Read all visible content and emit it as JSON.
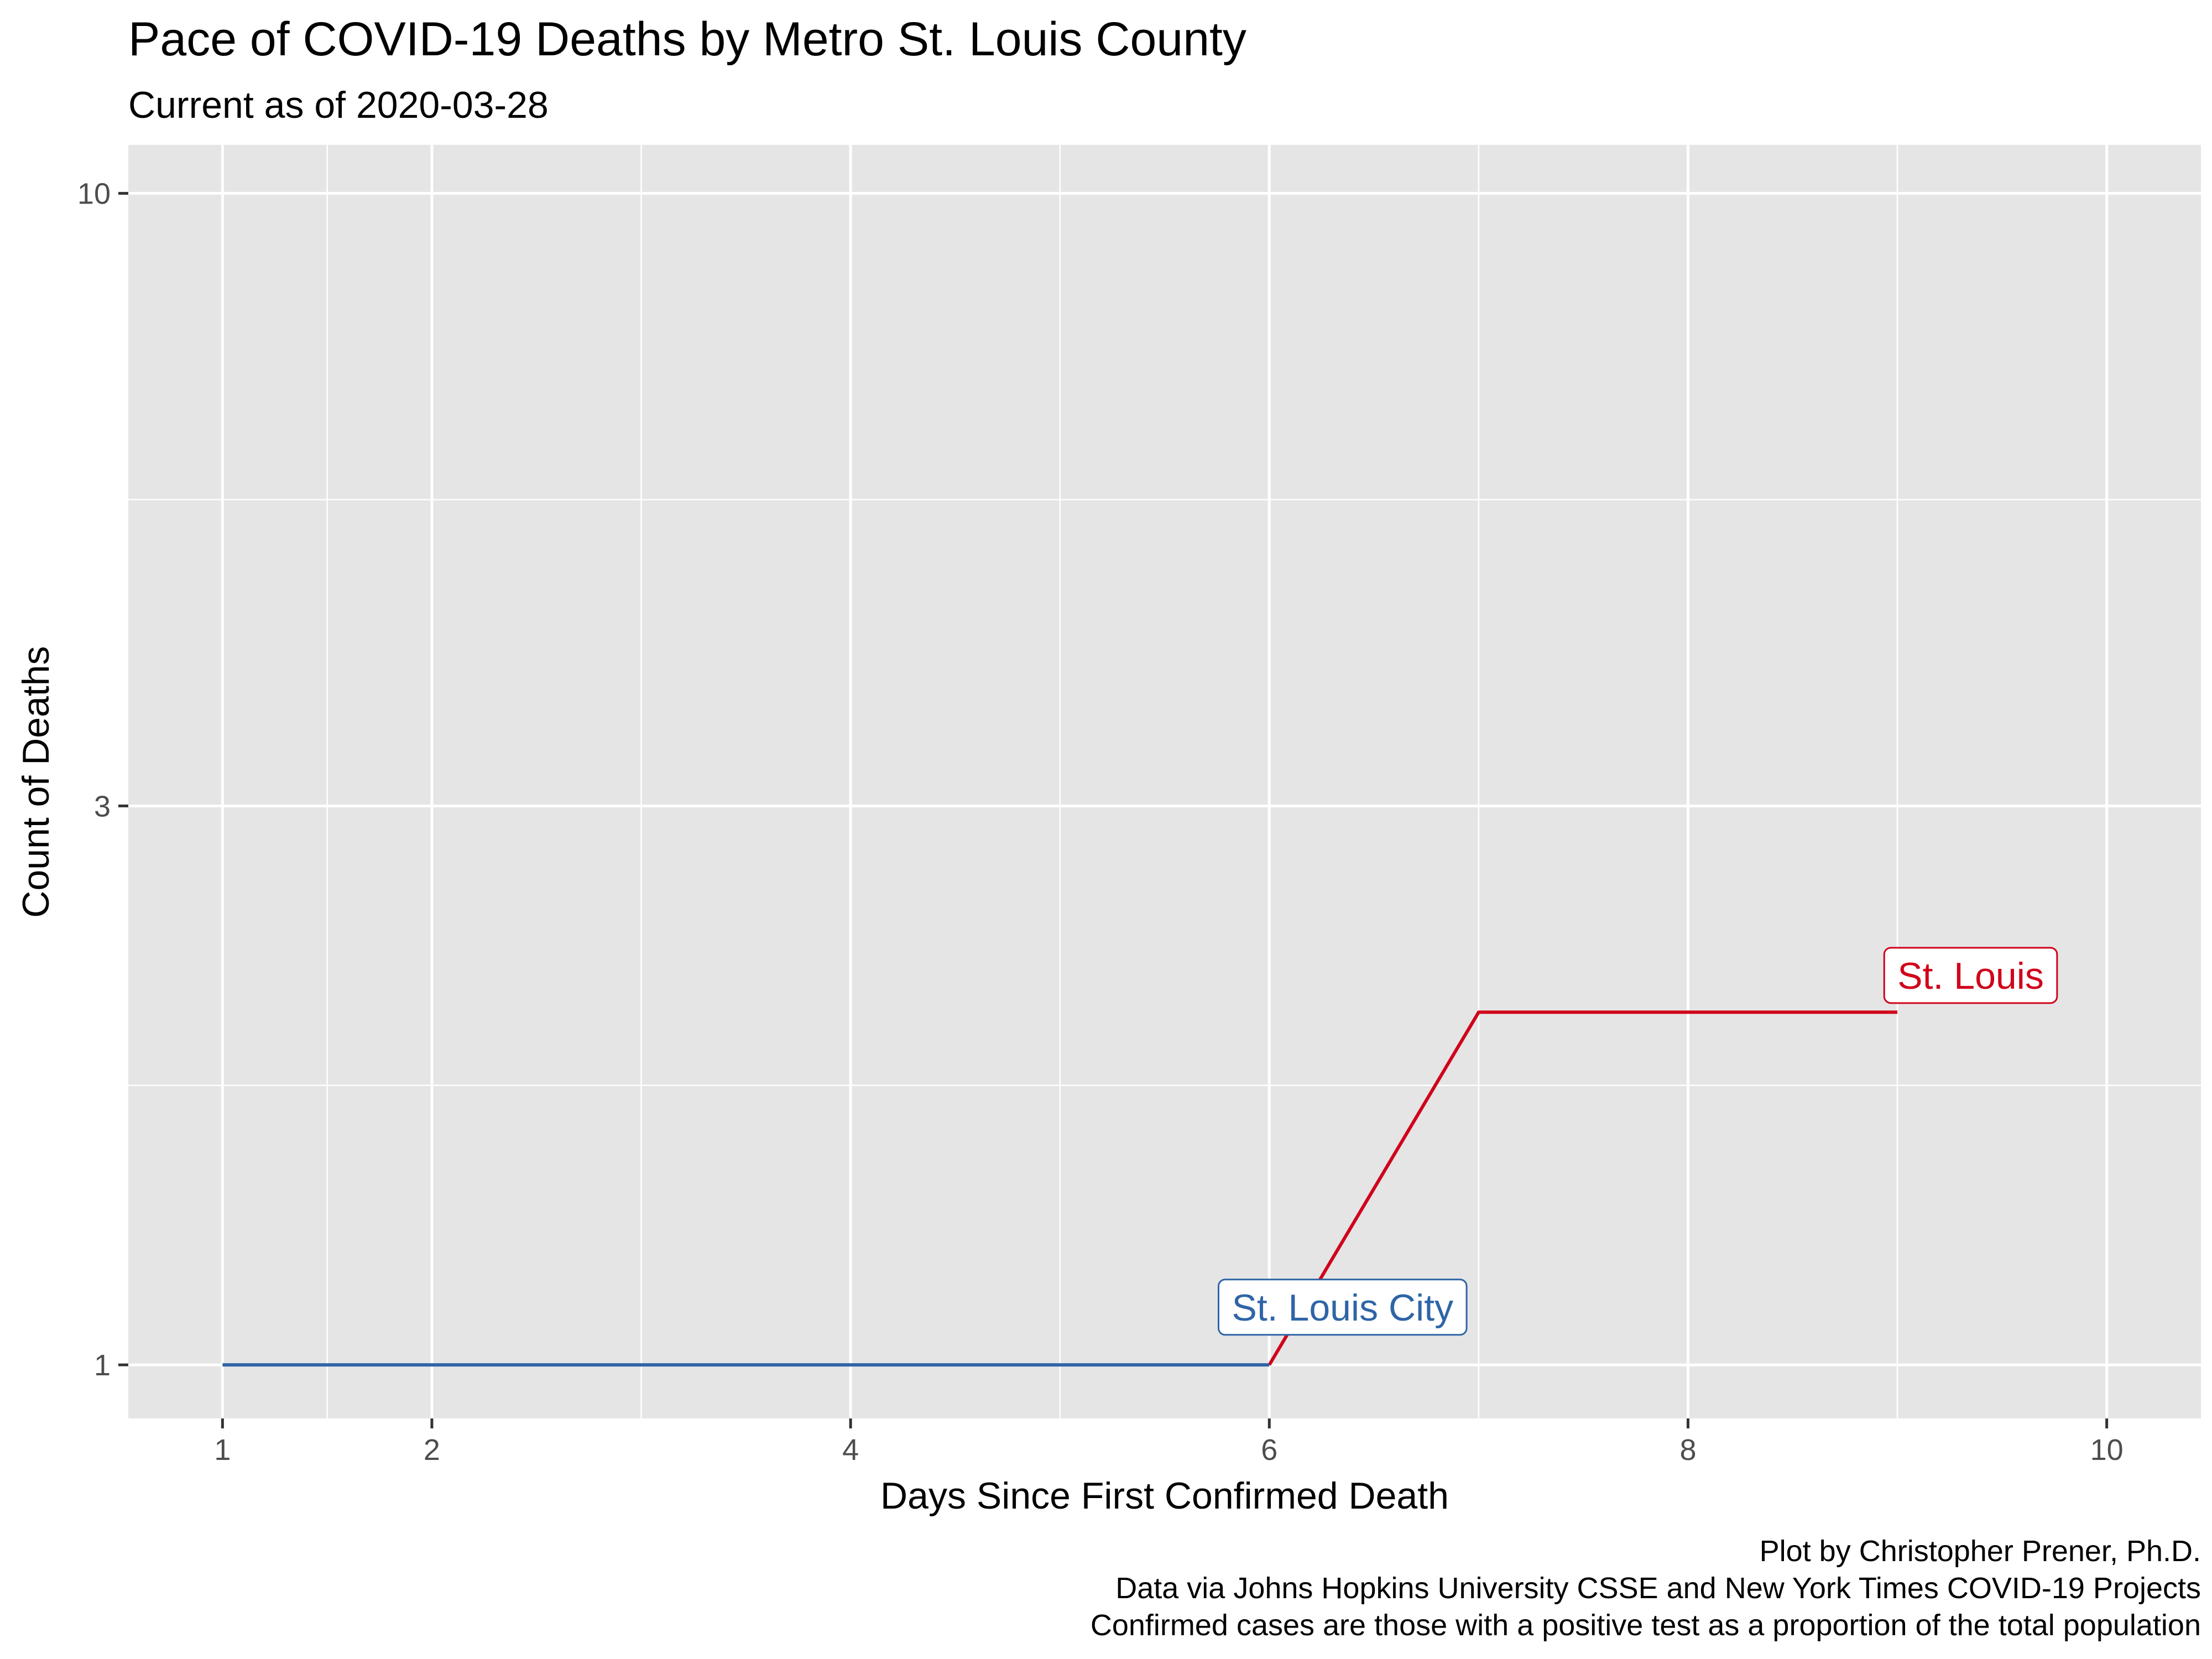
{
  "chart_data": {
    "type": "line",
    "title": "Pace of COVID-19 Deaths by Metro St. Louis County",
    "subtitle": "Current as of 2020-03-28",
    "xlabel": "Days Since First Confirmed Death",
    "ylabel": "Count of Deaths",
    "y_scale": "log",
    "xlim": [
      0.55,
      10.45
    ],
    "ylim": [
      0.9,
      11
    ],
    "x_ticks": [
      1,
      2,
      4,
      6,
      8,
      10
    ],
    "x_ticks_minor": [
      1.5,
      3,
      5,
      7,
      9
    ],
    "y_ticks": [
      1,
      3,
      10
    ],
    "y_ticks_minor": [
      1.7320508,
      5.4772256
    ],
    "grid": true,
    "legend": "none",
    "series": [
      {
        "name": "St. Louis City",
        "color": "#2f65a7",
        "x": [
          1,
          2,
          3,
          4,
          5,
          6
        ],
        "y": [
          1,
          1,
          1,
          1,
          1,
          1
        ],
        "label_at": [
          6.35,
          1.12
        ]
      },
      {
        "name": "St. Louis",
        "color": "#d0021b",
        "x": [
          6,
          7,
          8,
          9
        ],
        "y": [
          1,
          2,
          2,
          2
        ],
        "label_at": [
          9.35,
          2.15
        ]
      }
    ],
    "caption": [
      "Plot by Christopher Prener, Ph.D.",
      "Data via Johns Hopkins University CSSE and New York Times COVID-19 Projects",
      "Confirmed cases are those with a positive test as a proportion of the total population"
    ]
  }
}
